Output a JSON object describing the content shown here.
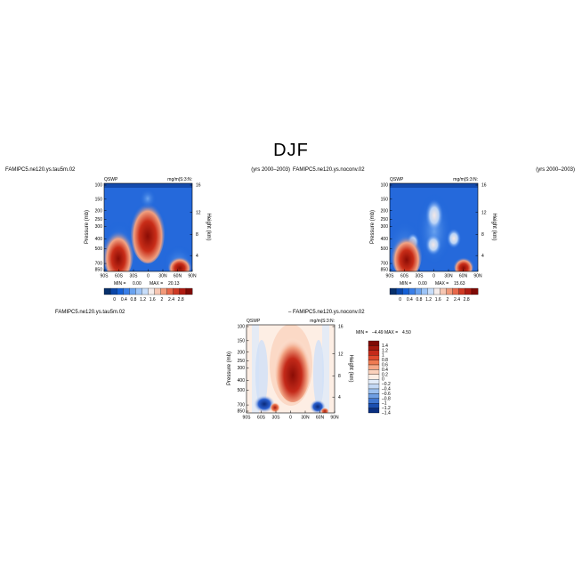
{
  "page": {
    "title": "DJF"
  },
  "panels": [
    {
      "id": "top-left",
      "run_label": "FAMIPC5.ne120.ys.tau5m.02",
      "years": "(yrs 2000–2003)",
      "var_left": "QSWP",
      "var_right": "mg/m|S:3:N:",
      "ylabel": "Pressure (mb)",
      "ylabel_right": "Height (km)",
      "stats": {
        "min_label": "MIN =",
        "min": "0.00",
        "max_label": "MAX =",
        "max": "20.13"
      }
    },
    {
      "id": "top-right",
      "run_label": "FAMIPC5.ne120.ys.noconv.02",
      "years": "(yrs 2000–2003)",
      "var_left": "QSWP",
      "var_right": "mg/m|S:3:N:",
      "ylabel": "Pressure (mb)",
      "ylabel_right": "Height (km)",
      "stats": {
        "min_label": "MIN =",
        "min": "0.00",
        "max_label": "MAX =",
        "max": "15.63"
      }
    },
    {
      "id": "bottom-diff",
      "run_label": "FAMIPC5.ne120.ys.tau5m.02",
      "minus_label": "– FAMIPC5.ne120.ys.noconv.02",
      "var_left": "QSWP",
      "var_right": "mg/m|S:3:N:",
      "ylabel": "Pressure (mb)",
      "ylabel_right": "Height (km)",
      "stats": {
        "min_label": "MIN =",
        "min": "–4.49",
        "max_label": "MAX =",
        "max": "4.50"
      }
    }
  ],
  "chart_data": [
    {
      "type": "heatmap",
      "panel": "top-left",
      "x_ticks": [
        "90S",
        "60S",
        "30S",
        "0",
        "30N",
        "60N",
        "90N"
      ],
      "y_ticks": [
        "100",
        "150",
        "200",
        "250",
        "300",
        "400",
        "500",
        "700",
        "850"
      ],
      "y_ticks_right": [
        "16",
        "12",
        "8",
        "4"
      ],
      "colorbar_ticks": [
        "0",
        "0.4",
        "0.8",
        "1.2",
        "1.6",
        "2",
        "2.4",
        "2.8"
      ],
      "colormap": [
        "#08306b",
        "#0b46a8",
        "#1560d6",
        "#3a7fe8",
        "#6aa3f0",
        "#9cc4f7",
        "#c8defa",
        "#f5ecea",
        "#f6c7b3",
        "#f29a7a",
        "#e8684a",
        "#cf3a25",
        "#b01c12",
        "#7f0a05"
      ]
    },
    {
      "type": "heatmap",
      "panel": "top-right",
      "x_ticks": [
        "90S",
        "60S",
        "30S",
        "0",
        "30N",
        "60N",
        "90N"
      ],
      "y_ticks": [
        "100",
        "150",
        "200",
        "250",
        "300",
        "400",
        "500",
        "700",
        "850"
      ],
      "y_ticks_right": [
        "16",
        "12",
        "8",
        "4"
      ],
      "colorbar_ticks": [
        "0",
        "0.4",
        "0.8",
        "1.2",
        "1.6",
        "2",
        "2.4",
        "2.8"
      ]
    },
    {
      "type": "heatmap",
      "panel": "bottom-diff",
      "x_ticks": [
        "90S",
        "60S",
        "30S",
        "0",
        "30N",
        "60N",
        "90N"
      ],
      "y_ticks": [
        "100",
        "150",
        "200",
        "250",
        "300",
        "400",
        "500",
        "700",
        "850"
      ],
      "y_ticks_right": [
        "16",
        "12",
        "8",
        "4"
      ],
      "colorbar_ticks": [
        "1.4",
        "1.2",
        "1",
        "0.8",
        "0.6",
        "0.4",
        "0.2",
        "0",
        "–0.2",
        "–0.4",
        "–0.6",
        "–0.8",
        "–1",
        "–1.2",
        "–1.4"
      ],
      "colormap": [
        "#7f0a05",
        "#a3180e",
        "#c42a1a",
        "#e04a2e",
        "#ef7b52",
        "#f6a887",
        "#fbd2bc",
        "#fdeee4",
        "#e2ecf9",
        "#c3d9f5",
        "#9cc0ef",
        "#6f9fe4",
        "#3f76d0",
        "#1b4fb0",
        "#0a2f80"
      ]
    }
  ]
}
